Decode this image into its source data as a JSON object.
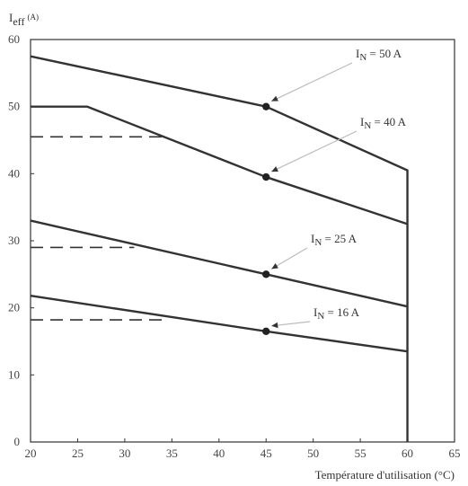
{
  "chart_data": {
    "type": "line",
    "ylabel_main": "I",
    "ylabel_sub": "eff",
    "ylabel_unit": "(A)",
    "xlabel": "Température d'utilisation (°C)",
    "xlim": [
      20,
      65
    ],
    "ylim": [
      0,
      60
    ],
    "x_ticks": [
      "20",
      "25",
      "30",
      "35",
      "40",
      "45",
      "50",
      "55",
      "60",
      "65"
    ],
    "y_ticks": [
      "0",
      "10",
      "20",
      "30",
      "40",
      "50",
      "60"
    ],
    "grid": false,
    "series": [
      {
        "label_prefix": "I",
        "label_sub": "N",
        "label_rest": " = 50 A",
        "points": [
          [
            20,
            57.5
          ],
          [
            45,
            50
          ],
          [
            60,
            40.5
          ],
          [
            60,
            0
          ]
        ],
        "marker": [
          45,
          50
        ]
      },
      {
        "label_prefix": "I",
        "label_sub": "N",
        "label_rest": " = 40 A",
        "points": [
          [
            20,
            50
          ],
          [
            26,
            50
          ],
          [
            45,
            39.5
          ],
          [
            60,
            32.5
          ]
        ],
        "marker": [
          45,
          39.5
        ],
        "dashed": [
          [
            20,
            45.5
          ],
          [
            34,
            45.5
          ]
        ]
      },
      {
        "label_prefix": "I",
        "label_sub": "N",
        "label_rest": " = 25 A",
        "points": [
          [
            20,
            33
          ],
          [
            45,
            25
          ],
          [
            60,
            20.2
          ]
        ],
        "marker": [
          45,
          25
        ],
        "dashed": [
          [
            20,
            29
          ],
          [
            31,
            29
          ]
        ]
      },
      {
        "label_prefix": "I",
        "label_sub": "N",
        "label_rest": " = 16 A",
        "points": [
          [
            20,
            21.8
          ],
          [
            45,
            16.5
          ],
          [
            60,
            13.5
          ]
        ],
        "marker": [
          45,
          16.5
        ],
        "dashed": [
          [
            20,
            18.2
          ],
          [
            34,
            18.2
          ]
        ]
      }
    ]
  }
}
